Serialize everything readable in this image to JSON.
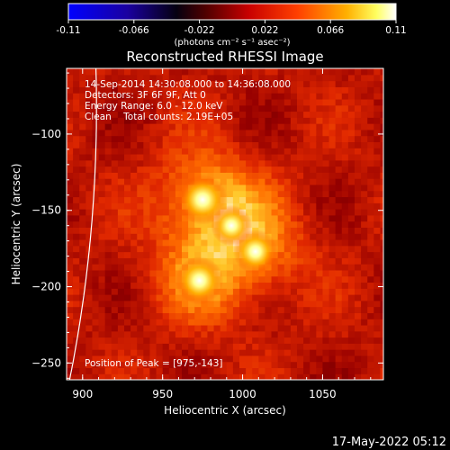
{
  "chart_data": {
    "type": "heatmap",
    "title": "Reconstructed RHESSI Image",
    "xlabel": "Heliocentric X (arcsec)",
    "ylabel": "Heliocentric Y (arcsec)",
    "xlim": [
      890,
      1088
    ],
    "ylim": [
      -261,
      -57
    ],
    "x_ticks": [
      900,
      950,
      1000,
      1050
    ],
    "y_ticks": [
      -100,
      -150,
      -200,
      -250
    ],
    "colorbar": {
      "min": -0.11,
      "max": 0.11,
      "ticks": [
        "-0.11",
        "-0.066",
        "-0.022",
        "0.022",
        "0.066",
        "0.11"
      ],
      "label": "(photons cm⁻² s⁻¹ asec⁻²)",
      "colormap": "rhessi-blue-black-red-yellow-white"
    },
    "sources": [
      {
        "x": 975,
        "y": -143,
        "value": 0.11
      },
      {
        "x": 973,
        "y": -196,
        "value": 0.1
      },
      {
        "x": 1008,
        "y": -177,
        "value": 0.085
      },
      {
        "x": 993,
        "y": -160,
        "value": 0.07
      }
    ],
    "background_value": 0.04,
    "info_lines": [
      "14-Sep-2014 14:30:08.000 to 14:36:08.000",
      "Detectors: 3F 6F 9F, Att 0",
      "Energy Range: 6.0 - 12.0 keV",
      "Clean    Total counts: 2.19E+05"
    ],
    "peak_label": "Position of Peak = [975,-143]",
    "limb_label": "",
    "grid": false
  },
  "footer": {
    "timestamp": "17-May-2022 05:12"
  },
  "colors": {
    "background": "#000000",
    "text": "#ffffff",
    "limb": "#ffffff"
  }
}
